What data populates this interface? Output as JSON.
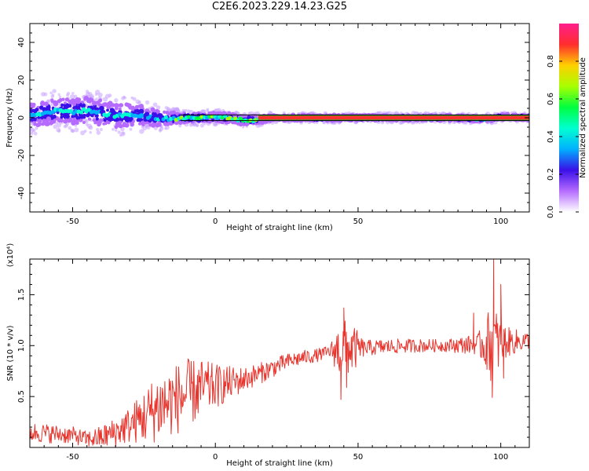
{
  "page": {
    "title": "C2E6.2023.229.14.23.G25"
  },
  "colors": {
    "snr_line": "#e8352e",
    "axis": "#000000",
    "band_edge": "#000000"
  },
  "chart_data": [
    {
      "type": "heatmap",
      "title": "C2E6.2023.229.14.23.G25",
      "xlabel": "Height of straight line (km)",
      "ylabel": "Frequency (Hz)",
      "xlim": [
        -65,
        110
      ],
      "ylim": [
        -50,
        50
      ],
      "xticks": [
        -50,
        0,
        50,
        100
      ],
      "yticks": [
        -40,
        -20,
        0,
        20,
        40
      ],
      "colorbar": {
        "label": "Normalized spectral amplitude",
        "range": [
          0,
          1
        ],
        "ticks": [
          "0.0",
          "0.2",
          "0.4",
          "0.6",
          "0.8"
        ],
        "colormap": [
          "#ffffff",
          "#b56bff",
          "#3a10e8",
          "#00b0ff",
          "#00ffd0",
          "#00ff40",
          "#a8ff00",
          "#ffd000",
          "#ff2d2d",
          "#ff1d8c"
        ]
      },
      "ridge": [
        {
          "x": -65,
          "f": 1.5
        },
        {
          "x": -60,
          "f": 2.5
        },
        {
          "x": -55,
          "f": 4.0
        },
        {
          "x": -50,
          "f": 3.0
        },
        {
          "x": -45,
          "f": 4.0
        },
        {
          "x": -40,
          "f": 2.5
        },
        {
          "x": -35,
          "f": 1.0
        },
        {
          "x": -30,
          "f": 1.5
        },
        {
          "x": -25,
          "f": 1.0
        },
        {
          "x": -20,
          "f": -0.5
        },
        {
          "x": -15,
          "f": -0.5
        },
        {
          "x": -10,
          "f": 0.0
        },
        {
          "x": -5,
          "f": 0.0
        },
        {
          "x": 0,
          "f": 0.5
        },
        {
          "x": 5,
          "f": 0.0
        },
        {
          "x": 10,
          "f": -1.5
        },
        {
          "x": 15,
          "f": -1.0
        },
        {
          "x": 20,
          "f": 0.0
        },
        {
          "x": 40,
          "f": 0.0
        },
        {
          "x": 60,
          "f": 0.0
        },
        {
          "x": 80,
          "f": 0.0
        },
        {
          "x": 95,
          "f": -0.5
        },
        {
          "x": 100,
          "f": 0.5
        },
        {
          "x": 110,
          "f": 0.0
        }
      ],
      "spread_hz": [
        {
          "x": -65,
          "w": 6
        },
        {
          "x": -45,
          "w": 7
        },
        {
          "x": -30,
          "w": 6
        },
        {
          "x": -20,
          "w": 4
        },
        {
          "x": -10,
          "w": 2.5
        },
        {
          "x": 10,
          "w": 2.5
        },
        {
          "x": 20,
          "w": 1.5
        },
        {
          "x": 110,
          "w": 1.5
        }
      ],
      "peak_band_hz": [
        -1.2,
        1.2
      ]
    },
    {
      "type": "line",
      "title": "",
      "xlabel": "Height of straight line (km)",
      "ylabel": "SNR (10 * v/v)",
      "ylabel_multiplier": "(x10⁴)",
      "xlim": [
        -65,
        110
      ],
      "ylim": [
        0,
        1.85
      ],
      "xticks": [
        -50,
        0,
        50,
        100
      ],
      "yticks": [
        0.5,
        1.0,
        1.5
      ],
      "series": [
        {
          "color": "#e8352e",
          "trend": [
            {
              "x": -65,
              "y": 0.15
            },
            {
              "x": -50,
              "y": 0.12
            },
            {
              "x": -45,
              "y": 0.08
            },
            {
              "x": -40,
              "y": 0.1
            },
            {
              "x": -35,
              "y": 0.15
            },
            {
              "x": -30,
              "y": 0.22
            },
            {
              "x": -25,
              "y": 0.3
            },
            {
              "x": -20,
              "y": 0.4
            },
            {
              "x": -15,
              "y": 0.46
            },
            {
              "x": -10,
              "y": 0.52
            },
            {
              "x": -5,
              "y": 0.58
            },
            {
              "x": 0,
              "y": 0.6
            },
            {
              "x": 5,
              "y": 0.63
            },
            {
              "x": 10,
              "y": 0.67
            },
            {
              "x": 15,
              "y": 0.72
            },
            {
              "x": 20,
              "y": 0.78
            },
            {
              "x": 25,
              "y": 0.84
            },
            {
              "x": 30,
              "y": 0.88
            },
            {
              "x": 35,
              "y": 0.9
            },
            {
              "x": 40,
              "y": 0.94
            },
            {
              "x": 45,
              "y": 0.97
            },
            {
              "x": 50,
              "y": 0.97
            },
            {
              "x": 55,
              "y": 0.98
            },
            {
              "x": 60,
              "y": 0.99
            },
            {
              "x": 70,
              "y": 1.0
            },
            {
              "x": 80,
              "y": 1.0
            },
            {
              "x": 90,
              "y": 1.01
            },
            {
              "x": 100,
              "y": 1.03
            },
            {
              "x": 110,
              "y": 1.05
            }
          ],
          "noise": [
            {
              "x": -65,
              "a": 0.1
            },
            {
              "x": -45,
              "a": 0.08
            },
            {
              "x": -30,
              "a": 0.18
            },
            {
              "x": -20,
              "a": 0.35
            },
            {
              "x": -10,
              "a": 0.35
            },
            {
              "x": 0,
              "a": 0.22
            },
            {
              "x": 10,
              "a": 0.12
            },
            {
              "x": 25,
              "a": 0.08
            },
            {
              "x": 40,
              "a": 0.06
            },
            {
              "x": 44,
              "a": 0.3
            },
            {
              "x": 48,
              "a": 0.25
            },
            {
              "x": 52,
              "a": 0.08
            },
            {
              "x": 80,
              "a": 0.06
            },
            {
              "x": 92,
              "a": 0.1
            },
            {
              "x": 97,
              "a": 0.4
            },
            {
              "x": 102,
              "a": 0.15
            },
            {
              "x": 110,
              "a": 0.08
            }
          ],
          "extremes": [
            {
              "x": 45,
              "y": 1.37
            },
            {
              "x": 44,
              "y": 0.47
            },
            {
              "x": 46,
              "y": 0.59
            },
            {
              "x": 90.5,
              "y": 1.32
            },
            {
              "x": 97.5,
              "y": 1.85
            },
            {
              "x": 97.0,
              "y": 0.49
            },
            {
              "x": 100,
              "y": 1.6
            },
            {
              "x": 101,
              "y": 0.68
            }
          ]
        }
      ]
    }
  ]
}
